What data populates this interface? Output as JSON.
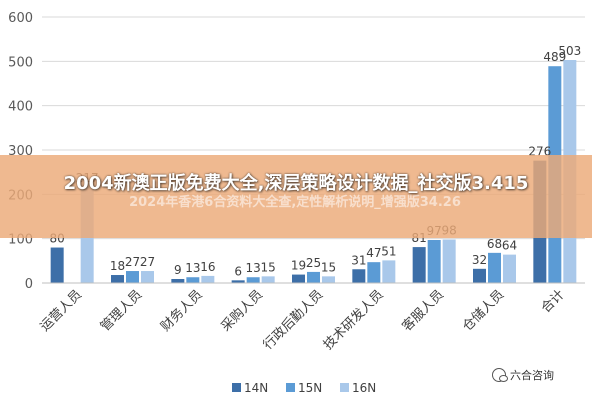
{
  "chart_data": {
    "type": "bar",
    "categories": [
      "运营人员",
      "管理人员",
      "财务人员",
      "采购人员",
      "行政后勤人员",
      "技术研发人员",
      "客服人员",
      "仓储人员",
      "合计"
    ],
    "series": [
      {
        "name": "14N",
        "color": "#3d6fa8",
        "values": [
          80,
          18,
          9,
          6,
          19,
          31,
          81,
          32,
          276
        ]
      },
      {
        "name": "15N",
        "color": "#5b9bd5",
        "values": [
          null,
          27,
          13,
          13,
          25,
          47,
          97,
          68,
          489
        ]
      },
      {
        "name": "16N",
        "color": "#a9c8ea",
        "values": [
          217,
          27,
          16,
          15,
          15,
          51,
          98,
          64,
          503
        ]
      }
    ],
    "ylim": [
      0,
      600
    ],
    "yticks": [
      0,
      100,
      200,
      300,
      400,
      500,
      600
    ],
    "grid": true,
    "legend": "bottom"
  },
  "banner": {
    "title": "2004新澳正版免费大全,深层策略设计数据_社交版3.415",
    "subtitle": "2024年香港6合资料大全查,定性解析说明_增强版34.26"
  },
  "watermark": {
    "text": "六合咨询",
    "icon": "wechat-icon"
  }
}
